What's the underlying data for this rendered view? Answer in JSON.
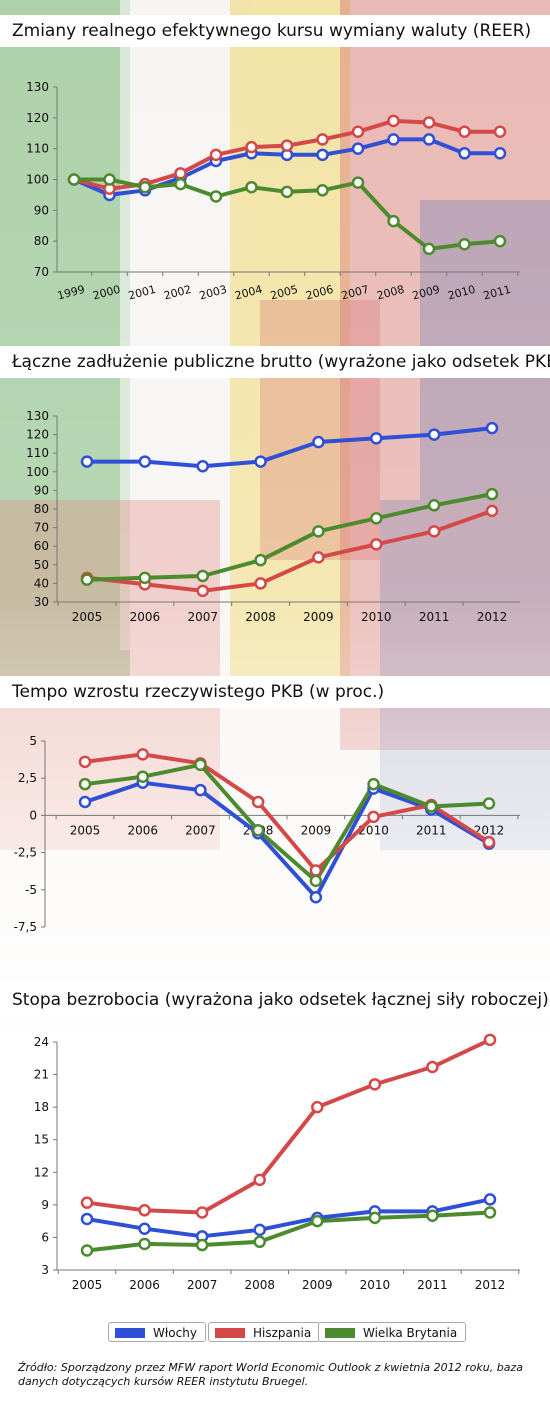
{
  "colors": {
    "italy": "#2f4fd6",
    "spain": "#d44848",
    "uk": "#4c8a2e",
    "title_bg": "#ffffff"
  },
  "legend": [
    {
      "label": "Włochy",
      "color": "#2f4fd6"
    },
    {
      "label": "Hiszpania",
      "color": "#d44848"
    },
    {
      "label": "Wielka Brytania",
      "color": "#4c8a2e"
    }
  ],
  "source_text": "Źródło: Sporządzony przez MFW raport World Economic Outlook z kwietnia 2012 roku, baza danych dotyczących kursów REER instytutu Bruegel.",
  "chart_data": [
    {
      "type": "line",
      "title": "Zmiany realnego efektywnego kursu wymiany waluty (REER)",
      "categories": [
        "1999",
        "2000",
        "2001",
        "2002",
        "2003",
        "2004",
        "2005",
        "2006",
        "2007",
        "2008",
        "2009",
        "2010",
        "2011"
      ],
      "ylim": [
        70,
        130
      ],
      "yticks": [
        "70",
        "80",
        "90",
        "100",
        "110",
        "120",
        "130"
      ],
      "grid": false,
      "series": [
        {
          "name": "Włochy",
          "values": [
            100,
            95,
            96.5,
            100.5,
            106,
            108.5,
            108,
            108,
            110,
            113,
            113,
            108.5,
            108.5
          ]
        },
        {
          "name": "Hiszpania",
          "values": [
            100,
            97,
            98.5,
            102,
            108,
            110.5,
            111,
            113,
            115.5,
            119,
            118.5,
            115.5,
            115.5
          ]
        },
        {
          "name": "Wielka Brytania",
          "values": [
            100,
            100,
            97.5,
            98.5,
            94.5,
            97.5,
            96,
            96.5,
            99,
            86.5,
            77.5,
            79,
            80
          ]
        }
      ]
    },
    {
      "type": "line",
      "title": "Łączne zadłużenie publiczne brutto (wyrażone jako odsetek PKB)",
      "categories": [
        "2005",
        "2006",
        "2007",
        "2008",
        "2009",
        "2010",
        "2011",
        "2012"
      ],
      "ylim": [
        30,
        130
      ],
      "yticks": [
        "30",
        "40",
        "50",
        "60",
        "70",
        "80",
        "90",
        "100",
        "110",
        "120",
        "130"
      ],
      "grid": false,
      "series": [
        {
          "name": "Włochy",
          "values": [
            105.5,
            105.5,
            103,
            105.5,
            116,
            118,
            120,
            123.5
          ]
        },
        {
          "name": "Hiszpania",
          "values": [
            43,
            39.5,
            36,
            40,
            54,
            61,
            68,
            79
          ]
        },
        {
          "name": "Wielka Brytania",
          "values": [
            42,
            43,
            44,
            52.5,
            68,
            75,
            82,
            88
          ]
        }
      ]
    },
    {
      "type": "line",
      "title": "Tempo wzrostu rzeczywistego PKB (w proc.)",
      "categories": [
        "2005",
        "2006",
        "2007",
        "2008",
        "2009",
        "2010",
        "2011",
        "2012"
      ],
      "ylim": [
        -7.5,
        5
      ],
      "yticks": [
        "5",
        "2,5",
        "0",
        "-2,5",
        "-5",
        "-7,5"
      ],
      "grid": false,
      "series": [
        {
          "name": "Włochy",
          "values": [
            0.9,
            2.2,
            1.7,
            -1.2,
            -5.5,
            1.8,
            0.4,
            -1.9
          ]
        },
        {
          "name": "Hiszpania",
          "values": [
            3.6,
            4.1,
            3.5,
            0.9,
            -3.7,
            -0.1,
            0.7,
            -1.8
          ]
        },
        {
          "name": "Wielka Brytania",
          "values": [
            2.1,
            2.6,
            3.4,
            -1.0,
            -4.4,
            2.1,
            0.6,
            0.8
          ]
        }
      ]
    },
    {
      "type": "line",
      "title": "Stopa bezrobocia (wyrażona jako odsetek łącznej siły roboczej)",
      "categories": [
        "2005",
        "2006",
        "2007",
        "2008",
        "2009",
        "2010",
        "2011",
        "2012"
      ],
      "ylim": [
        3,
        24
      ],
      "yticks": [
        "3",
        "6",
        "9",
        "12",
        "15",
        "18",
        "21",
        "24"
      ],
      "grid": false,
      "series": [
        {
          "name": "Włochy",
          "values": [
            7.7,
            6.8,
            6.1,
            6.7,
            7.8,
            8.4,
            8.4,
            9.5
          ]
        },
        {
          "name": "Hiszpania",
          "values": [
            9.2,
            8.5,
            8.3,
            11.3,
            18,
            20.1,
            21.7,
            24.2
          ]
        },
        {
          "name": "Wielka Brytania",
          "values": [
            4.8,
            5.4,
            5.3,
            5.6,
            7.5,
            7.8,
            8.0,
            8.3
          ]
        }
      ]
    }
  ]
}
